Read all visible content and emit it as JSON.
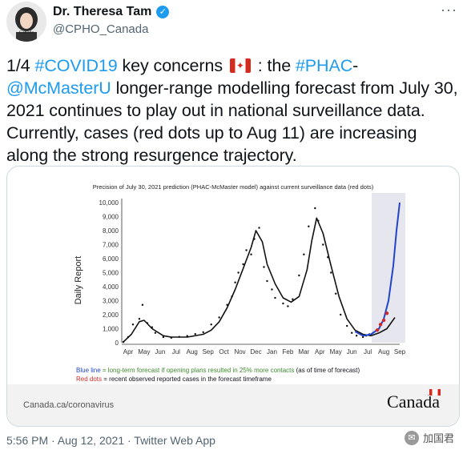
{
  "author": {
    "name": "Dr. Theresa Tam",
    "handle": "@CPHO_Canada",
    "avatar_label": "Canada"
  },
  "tweet": {
    "t1": "1/4 ",
    "h1": "#COVID19",
    "t2": " key concerns ",
    "t3": " : the ",
    "h2": "#PHAC",
    "t4": "-",
    "h3": "@McMasterU",
    "t5": " longer-range modelling forecast from July 30, 2021 continues to play out in national surveillance data.  Currently, cases (red dots up to Aug 11) are increasing along the strong resurgence trajectory."
  },
  "card": {
    "chart_title": "Precision of July 30, 2021 prediction (PHAC-McMaster model) against current surveillance data (red dots)",
    "legend": {
      "blue_label": "Blue line",
      "blue_text": " = long-term forecast if opening plans resulted in 25% more contacts",
      "blue_note": " (as of time of forecast)",
      "red_label": "Red dots",
      "red_text": " = recent observed reported cases in the forecast timeframe"
    },
    "footer_url": "Canada.ca/coronavirus",
    "wordmark": "Canada"
  },
  "timestamp": "5:56 PM · Aug 12, 2021 · Twitter Web App",
  "watermark": "加国君",
  "colors": {
    "link": "#1d9bf0",
    "forecast_blue": "#2244cc",
    "observed_red": "#d62728",
    "verified": "#1d9bf0"
  },
  "chart_data": {
    "type": "scatter",
    "title": "Precision of July 30, 2021 prediction (PHAC-McMaster model) against current surveillance data (red dots)",
    "ylabel": "Daily Report",
    "xlabel": "",
    "ylim": [
      0,
      10000
    ],
    "yticks": [
      "0",
      "1,000",
      "2,000",
      "3,000",
      "4,000",
      "5,000",
      "6,000",
      "7,000",
      "8,000",
      "9,000",
      "10,000"
    ],
    "ytick_values": [
      0,
      1000,
      2000,
      3000,
      4000,
      5000,
      6000,
      7000,
      8000,
      9000,
      10000
    ],
    "xticks": [
      "Apr",
      "May",
      "Jun",
      "Jul",
      "Aug",
      "Sep",
      "Oct",
      "Nov",
      "Dec",
      "Jan",
      "Feb",
      "Mar",
      "Apr",
      "May",
      "Jun",
      "Jul",
      "Aug",
      "Sep"
    ],
    "series": [
      {
        "name": "Black dots",
        "style": "dots",
        "x": [
          0,
          0.3,
          0.6,
          1.0,
          1.2,
          1.5,
          1.8,
          2.0,
          2.5,
          3.0,
          3.5,
          4.0,
          4.5,
          5.0,
          5.5,
          6.0,
          6.5,
          6.8,
          7.0,
          7.2,
          7.5,
          7.7,
          8.0,
          8.2,
          8.5,
          8.8,
          9.0,
          9.3,
          9.5,
          10.0,
          10.3,
          10.6,
          11.0,
          11.3,
          11.6,
          12.0,
          12.2,
          12.5,
          12.8,
          13.0,
          13.3,
          13.6,
          14.0,
          14.3,
          14.6,
          15.0,
          15.2,
          15.4
        ],
        "y": [
          50,
          400,
          1300,
          1700,
          2700,
          1400,
          1100,
          700,
          400,
          350,
          420,
          480,
          620,
          750,
          1300,
          1800,
          2700,
          3300,
          4300,
          5000,
          5600,
          6600,
          6300,
          7400,
          8200,
          5400,
          4400,
          3800,
          3200,
          2800,
          2600,
          3100,
          4800,
          6300,
          8300,
          9600,
          8700,
          7000,
          6100,
          5000,
          3500,
          2000,
          1200,
          700,
          500,
          400,
          500,
          600
        ]
      },
      {
        "name": "Black line",
        "style": "line",
        "x": [
          0,
          0.5,
          1.0,
          1.3,
          1.8,
          2.5,
          3.0,
          4.0,
          5.0,
          5.5,
          6.0,
          6.5,
          7.0,
          7.5,
          8.0,
          8.3,
          8.7,
          9.0,
          9.5,
          10.0,
          10.5,
          11.0,
          11.5,
          11.8,
          12.1,
          12.5,
          13.0,
          13.5,
          14.0,
          14.5,
          15.0,
          15.5,
          16.0,
          16.5,
          17.0
        ],
        "y": [
          50,
          600,
          1500,
          1600,
          1000,
          500,
          400,
          400,
          600,
          900,
          1500,
          2500,
          3800,
          5300,
          6800,
          8000,
          7200,
          5600,
          4200,
          3200,
          2900,
          3300,
          5200,
          7300,
          8900,
          7800,
          5500,
          3300,
          1700,
          900,
          600,
          500,
          700,
          1000,
          1800
        ]
      },
      {
        "name": "Blue line",
        "style": "line",
        "x": [
          14.5,
          15.0,
          15.5,
          16.0,
          16.3,
          16.6,
          16.9,
          17.1,
          17.3
        ],
        "y": [
          800,
          500,
          600,
          1000,
          1700,
          3000,
          5500,
          8000,
          10000
        ]
      },
      {
        "name": "Red dots",
        "style": "dots",
        "x": [
          15.9,
          16.1,
          16.3,
          16.5
        ],
        "y": [
          900,
          1300,
          1600,
          2100
        ]
      }
    ]
  }
}
